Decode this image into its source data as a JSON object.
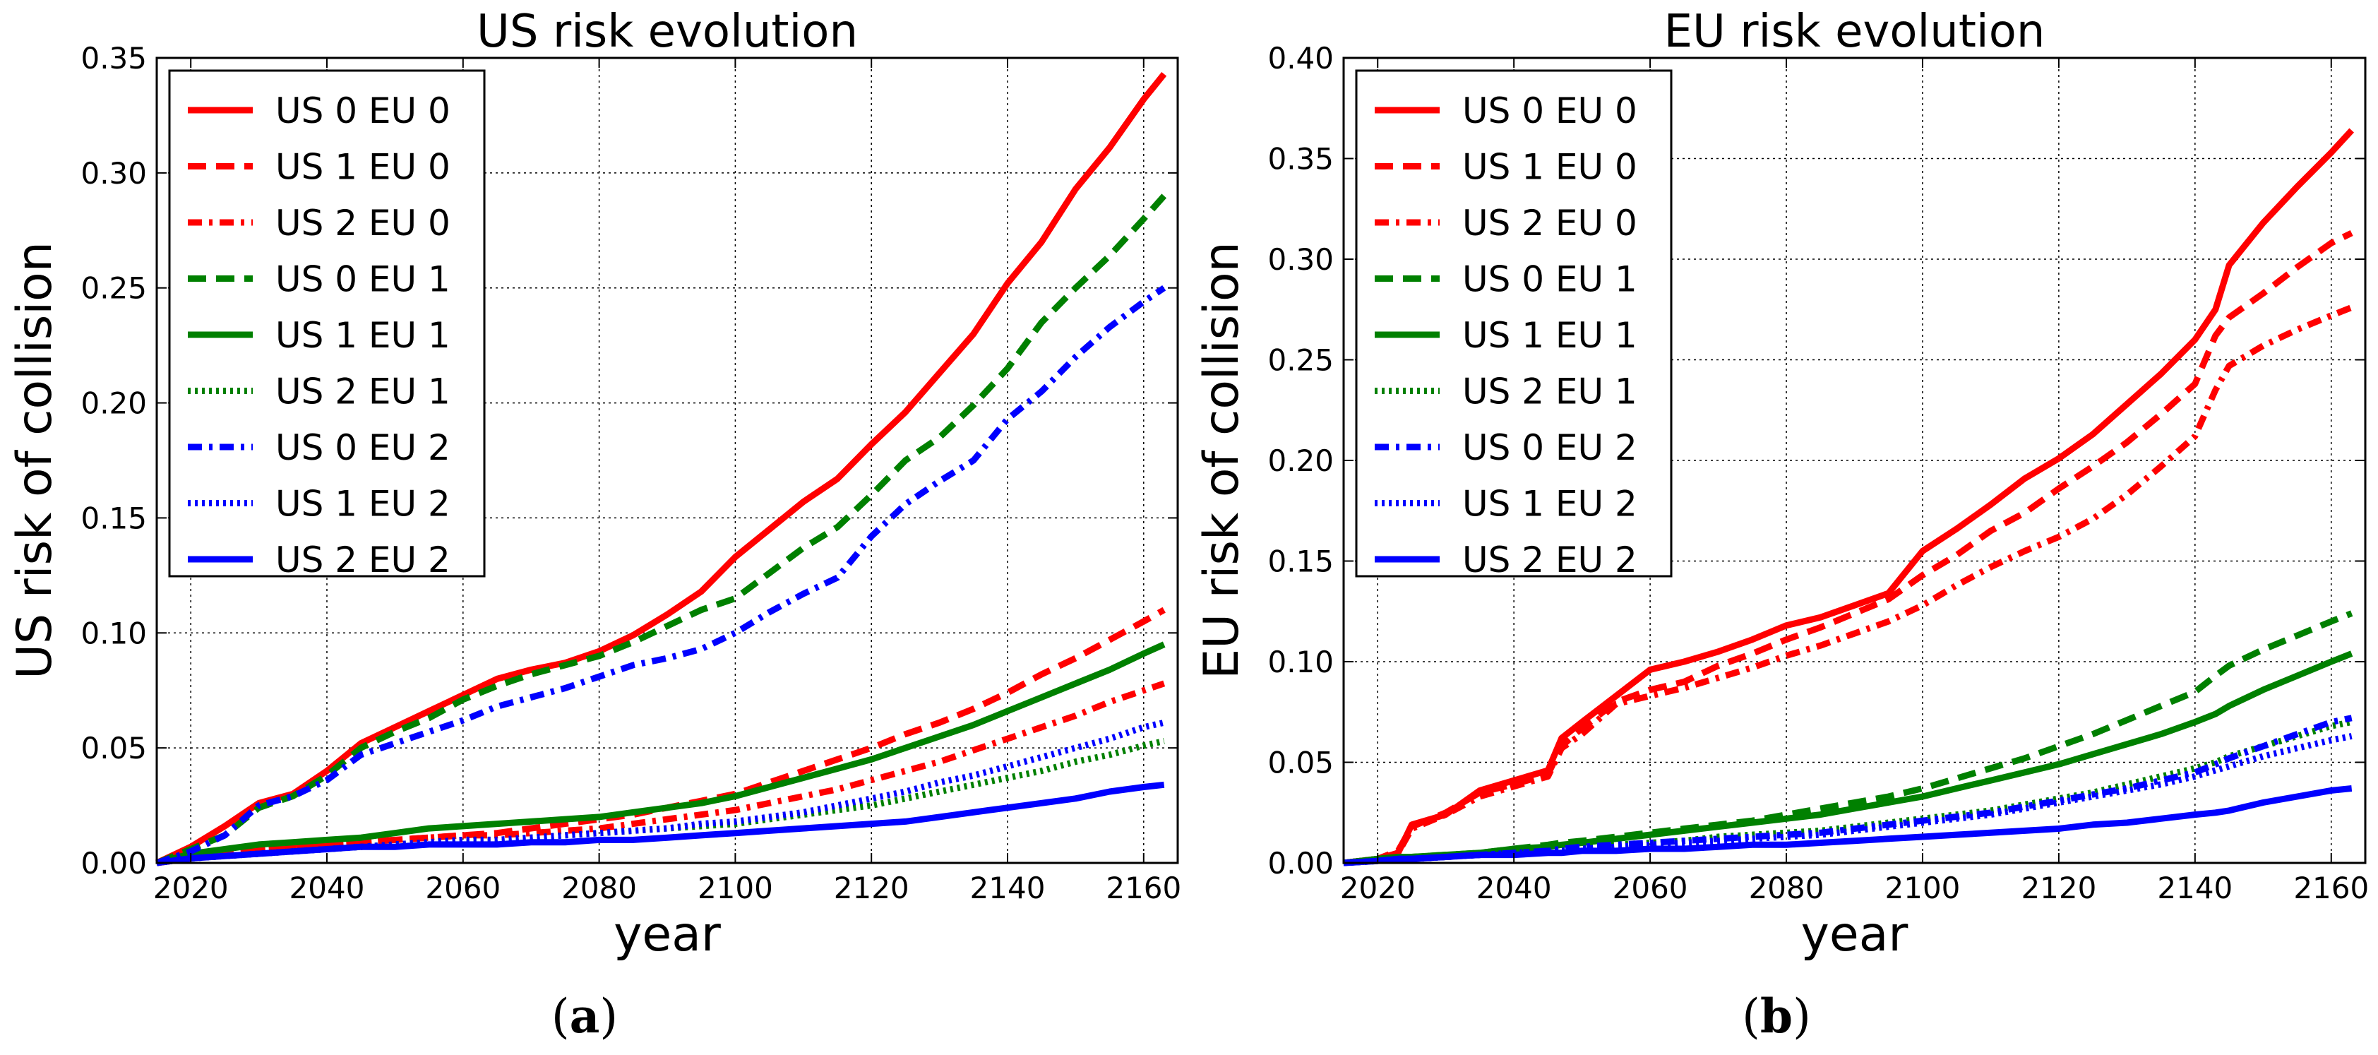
{
  "chart_data": [
    {
      "type": "line",
      "title": "US risk evolution",
      "xlabel": "year",
      "ylabel": "US risk of collision",
      "caption_letter": "a",
      "caption_open": "(",
      "caption_close": ")",
      "xlim": [
        2015,
        2165
      ],
      "ylim": [
        0,
        0.35
      ],
      "xticks": [
        2020,
        2040,
        2060,
        2080,
        2100,
        2120,
        2140,
        2160
      ],
      "yticks": [
        0.0,
        0.05,
        0.1,
        0.15,
        0.2,
        0.25,
        0.3,
        0.35
      ],
      "xtick_labels": [
        "2020",
        "2040",
        "2060",
        "2080",
        "2100",
        "2120",
        "2140",
        "2160"
      ],
      "ytick_labels": [
        "0.00",
        "0.05",
        "0.10",
        "0.15",
        "0.20",
        "0.25",
        "0.30",
        "0.35"
      ],
      "grid": true,
      "legend_position": "top-left",
      "x": [
        2015,
        2020,
        2025,
        2030,
        2035,
        2040,
        2045,
        2050,
        2055,
        2060,
        2065,
        2070,
        2075,
        2080,
        2085,
        2090,
        2095,
        2100,
        2105,
        2110,
        2115,
        2120,
        2125,
        2130,
        2135,
        2140,
        2145,
        2150,
        2155,
        2160,
        2163
      ],
      "series": [
        {
          "name": "US 0 EU 0",
          "color": "#ff0000",
          "style": "solid",
          "values": [
            0.0,
            0.007,
            0.016,
            0.026,
            0.03,
            0.04,
            0.052,
            0.059,
            0.066,
            0.073,
            0.08,
            0.084,
            0.087,
            0.092,
            0.099,
            0.108,
            0.118,
            0.133,
            0.145,
            0.157,
            0.167,
            0.182,
            0.196,
            0.213,
            0.23,
            0.252,
            0.27,
            0.293,
            0.311,
            0.332,
            0.343
          ]
        },
        {
          "name": "US 1 EU 0",
          "color": "#ff0000",
          "style": "dashed",
          "values": [
            0.0,
            0.002,
            0.004,
            0.006,
            0.007,
            0.008,
            0.009,
            0.01,
            0.011,
            0.012,
            0.013,
            0.015,
            0.017,
            0.019,
            0.021,
            0.024,
            0.027,
            0.03,
            0.035,
            0.04,
            0.045,
            0.05,
            0.056,
            0.061,
            0.067,
            0.074,
            0.082,
            0.089,
            0.097,
            0.105,
            0.11
          ]
        },
        {
          "name": "US 2 EU 0",
          "color": "#ff0000",
          "style": "dashdot",
          "values": [
            0.0,
            0.002,
            0.004,
            0.006,
            0.007,
            0.008,
            0.009,
            0.01,
            0.011,
            0.012,
            0.012,
            0.013,
            0.014,
            0.015,
            0.017,
            0.019,
            0.021,
            0.023,
            0.026,
            0.029,
            0.032,
            0.036,
            0.04,
            0.044,
            0.049,
            0.054,
            0.059,
            0.064,
            0.07,
            0.075,
            0.078
          ]
        },
        {
          "name": "US 0 EU 1",
          "color": "#008000",
          "style": "dashed",
          "values": [
            0.0,
            0.006,
            0.012,
            0.024,
            0.029,
            0.038,
            0.05,
            0.057,
            0.063,
            0.071,
            0.077,
            0.082,
            0.086,
            0.09,
            0.096,
            0.103,
            0.11,
            0.115,
            0.126,
            0.137,
            0.146,
            0.16,
            0.175,
            0.185,
            0.199,
            0.215,
            0.235,
            0.25,
            0.264,
            0.28,
            0.29
          ]
        },
        {
          "name": "US 1 EU 1",
          "color": "#008000",
          "style": "solid",
          "values": [
            0.0,
            0.004,
            0.006,
            0.008,
            0.009,
            0.01,
            0.011,
            0.013,
            0.015,
            0.016,
            0.017,
            0.018,
            0.019,
            0.02,
            0.022,
            0.024,
            0.026,
            0.029,
            0.033,
            0.037,
            0.041,
            0.045,
            0.05,
            0.055,
            0.06,
            0.066,
            0.072,
            0.078,
            0.084,
            0.091,
            0.095
          ]
        },
        {
          "name": "US 2 EU 1",
          "color": "#008000",
          "style": "dotted",
          "values": [
            0.0,
            0.002,
            0.003,
            0.004,
            0.005,
            0.006,
            0.007,
            0.008,
            0.009,
            0.01,
            0.01,
            0.011,
            0.012,
            0.013,
            0.014,
            0.015,
            0.016,
            0.017,
            0.019,
            0.021,
            0.023,
            0.025,
            0.028,
            0.031,
            0.034,
            0.037,
            0.04,
            0.044,
            0.047,
            0.051,
            0.053
          ]
        },
        {
          "name": "US 0 EU 2",
          "color": "#0000ff",
          "style": "dashdot",
          "values": [
            0.0,
            0.005,
            0.012,
            0.025,
            0.029,
            0.036,
            0.047,
            0.052,
            0.057,
            0.062,
            0.068,
            0.072,
            0.076,
            0.081,
            0.086,
            0.089,
            0.093,
            0.1,
            0.109,
            0.117,
            0.124,
            0.142,
            0.156,
            0.166,
            0.175,
            0.193,
            0.205,
            0.22,
            0.233,
            0.244,
            0.25
          ]
        },
        {
          "name": "US 1 EU 2",
          "color": "#0000ff",
          "style": "dotted",
          "values": [
            0.0,
            0.002,
            0.003,
            0.004,
            0.005,
            0.006,
            0.007,
            0.008,
            0.009,
            0.01,
            0.01,
            0.011,
            0.012,
            0.013,
            0.014,
            0.015,
            0.017,
            0.018,
            0.02,
            0.022,
            0.025,
            0.028,
            0.031,
            0.035,
            0.038,
            0.042,
            0.046,
            0.05,
            0.054,
            0.059,
            0.061
          ]
        },
        {
          "name": "US 2 EU 2",
          "color": "#0000ff",
          "style": "solid",
          "values": [
            0.0,
            0.002,
            0.003,
            0.004,
            0.005,
            0.006,
            0.007,
            0.007,
            0.008,
            0.008,
            0.008,
            0.009,
            0.009,
            0.01,
            0.01,
            0.011,
            0.012,
            0.013,
            0.014,
            0.015,
            0.016,
            0.017,
            0.018,
            0.02,
            0.022,
            0.024,
            0.026,
            0.028,
            0.031,
            0.033,
            0.034
          ]
        }
      ]
    },
    {
      "type": "line",
      "title": "EU risk evolution",
      "xlabel": "year",
      "ylabel": "EU risk of collision",
      "caption_letter": "b",
      "caption_open": "(",
      "caption_close": ")",
      "xlim": [
        2015,
        2165
      ],
      "ylim": [
        0,
        0.4
      ],
      "xticks": [
        2020,
        2040,
        2060,
        2080,
        2100,
        2120,
        2140,
        2160
      ],
      "yticks": [
        0.0,
        0.05,
        0.1,
        0.15,
        0.2,
        0.25,
        0.3,
        0.35,
        0.4
      ],
      "xtick_labels": [
        "2020",
        "2040",
        "2060",
        "2080",
        "2100",
        "2120",
        "2140",
        "2160"
      ],
      "ytick_labels": [
        "0.00",
        "0.05",
        "0.10",
        "0.15",
        "0.20",
        "0.25",
        "0.30",
        "0.35",
        "0.40"
      ],
      "grid": true,
      "legend_position": "top-left",
      "x": [
        2015,
        2020,
        2023,
        2025,
        2030,
        2035,
        2040,
        2045,
        2047,
        2050,
        2055,
        2060,
        2065,
        2070,
        2075,
        2080,
        2085,
        2090,
        2095,
        2100,
        2105,
        2110,
        2115,
        2120,
        2125,
        2130,
        2135,
        2140,
        2143,
        2145,
        2150,
        2155,
        2160,
        2163
      ],
      "series": [
        {
          "name": "US 0 EU 0",
          "color": "#ff0000",
          "style": "solid",
          "values": [
            0.0,
            0.002,
            0.005,
            0.019,
            0.024,
            0.036,
            0.041,
            0.046,
            0.062,
            0.07,
            0.083,
            0.096,
            0.1,
            0.105,
            0.111,
            0.118,
            0.122,
            0.128,
            0.134,
            0.155,
            0.166,
            0.178,
            0.191,
            0.201,
            0.213,
            0.228,
            0.243,
            0.26,
            0.275,
            0.297,
            0.318,
            0.336,
            0.353,
            0.364
          ]
        },
        {
          "name": "US 1 EU 0",
          "color": "#ff0000",
          "style": "dashed",
          "values": [
            0.0,
            0.002,
            0.006,
            0.018,
            0.025,
            0.035,
            0.039,
            0.044,
            0.058,
            0.067,
            0.08,
            0.086,
            0.09,
            0.098,
            0.104,
            0.111,
            0.117,
            0.124,
            0.131,
            0.143,
            0.153,
            0.165,
            0.174,
            0.186,
            0.197,
            0.209,
            0.223,
            0.238,
            0.262,
            0.271,
            0.283,
            0.296,
            0.308,
            0.313
          ]
        },
        {
          "name": "US 2 EU 0",
          "color": "#ff0000",
          "style": "dashdot",
          "values": [
            0.0,
            0.002,
            0.005,
            0.017,
            0.024,
            0.033,
            0.038,
            0.043,
            0.057,
            0.064,
            0.079,
            0.083,
            0.087,
            0.092,
            0.097,
            0.103,
            0.108,
            0.114,
            0.12,
            0.128,
            0.138,
            0.147,
            0.155,
            0.162,
            0.171,
            0.183,
            0.197,
            0.212,
            0.235,
            0.247,
            0.257,
            0.265,
            0.272,
            0.276
          ]
        },
        {
          "name": "US 0 EU 1",
          "color": "#008000",
          "style": "dashed",
          "values": [
            0.0,
            0.002,
            0.003,
            0.003,
            0.004,
            0.005,
            0.007,
            0.009,
            0.01,
            0.011,
            0.013,
            0.015,
            0.017,
            0.019,
            0.021,
            0.024,
            0.027,
            0.03,
            0.033,
            0.037,
            0.042,
            0.047,
            0.052,
            0.058,
            0.064,
            0.071,
            0.078,
            0.085,
            0.093,
            0.098,
            0.106,
            0.113,
            0.12,
            0.124
          ]
        },
        {
          "name": "US 1 EU 1",
          "color": "#008000",
          "style": "solid",
          "values": [
            0.0,
            0.002,
            0.003,
            0.003,
            0.004,
            0.005,
            0.007,
            0.008,
            0.009,
            0.01,
            0.012,
            0.014,
            0.016,
            0.018,
            0.02,
            0.022,
            0.024,
            0.027,
            0.03,
            0.033,
            0.037,
            0.041,
            0.045,
            0.049,
            0.054,
            0.059,
            0.064,
            0.07,
            0.074,
            0.078,
            0.086,
            0.093,
            0.1,
            0.104
          ]
        },
        {
          "name": "US 2 EU 1",
          "color": "#008000",
          "style": "dotted",
          "values": [
            0.0,
            0.001,
            0.002,
            0.002,
            0.003,
            0.004,
            0.005,
            0.006,
            0.007,
            0.008,
            0.009,
            0.01,
            0.011,
            0.013,
            0.014,
            0.015,
            0.016,
            0.018,
            0.02,
            0.022,
            0.024,
            0.026,
            0.029,
            0.032,
            0.035,
            0.039,
            0.043,
            0.047,
            0.05,
            0.053,
            0.058,
            0.063,
            0.068,
            0.07
          ]
        },
        {
          "name": "US 0 EU 2",
          "color": "#0000ff",
          "style": "dashdot",
          "values": [
            0.0,
            0.001,
            0.002,
            0.002,
            0.003,
            0.004,
            0.005,
            0.006,
            0.007,
            0.008,
            0.009,
            0.01,
            0.011,
            0.012,
            0.013,
            0.014,
            0.015,
            0.017,
            0.019,
            0.021,
            0.023,
            0.025,
            0.028,
            0.031,
            0.034,
            0.037,
            0.041,
            0.045,
            0.049,
            0.052,
            0.058,
            0.064,
            0.07,
            0.072
          ]
        },
        {
          "name": "US 1 EU 2",
          "color": "#0000ff",
          "style": "dotted",
          "values": [
            0.0,
            0.001,
            0.002,
            0.002,
            0.003,
            0.004,
            0.005,
            0.006,
            0.006,
            0.007,
            0.008,
            0.009,
            0.01,
            0.011,
            0.012,
            0.013,
            0.014,
            0.016,
            0.018,
            0.02,
            0.022,
            0.024,
            0.027,
            0.03,
            0.033,
            0.036,
            0.039,
            0.043,
            0.046,
            0.048,
            0.053,
            0.057,
            0.061,
            0.063
          ]
        },
        {
          "name": "US 2 EU 2",
          "color": "#0000ff",
          "style": "solid",
          "values": [
            0.0,
            0.001,
            0.002,
            0.002,
            0.003,
            0.004,
            0.004,
            0.005,
            0.005,
            0.006,
            0.006,
            0.007,
            0.007,
            0.008,
            0.009,
            0.009,
            0.01,
            0.011,
            0.012,
            0.013,
            0.014,
            0.015,
            0.016,
            0.017,
            0.019,
            0.02,
            0.022,
            0.024,
            0.025,
            0.026,
            0.03,
            0.033,
            0.036,
            0.037
          ]
        }
      ]
    }
  ]
}
